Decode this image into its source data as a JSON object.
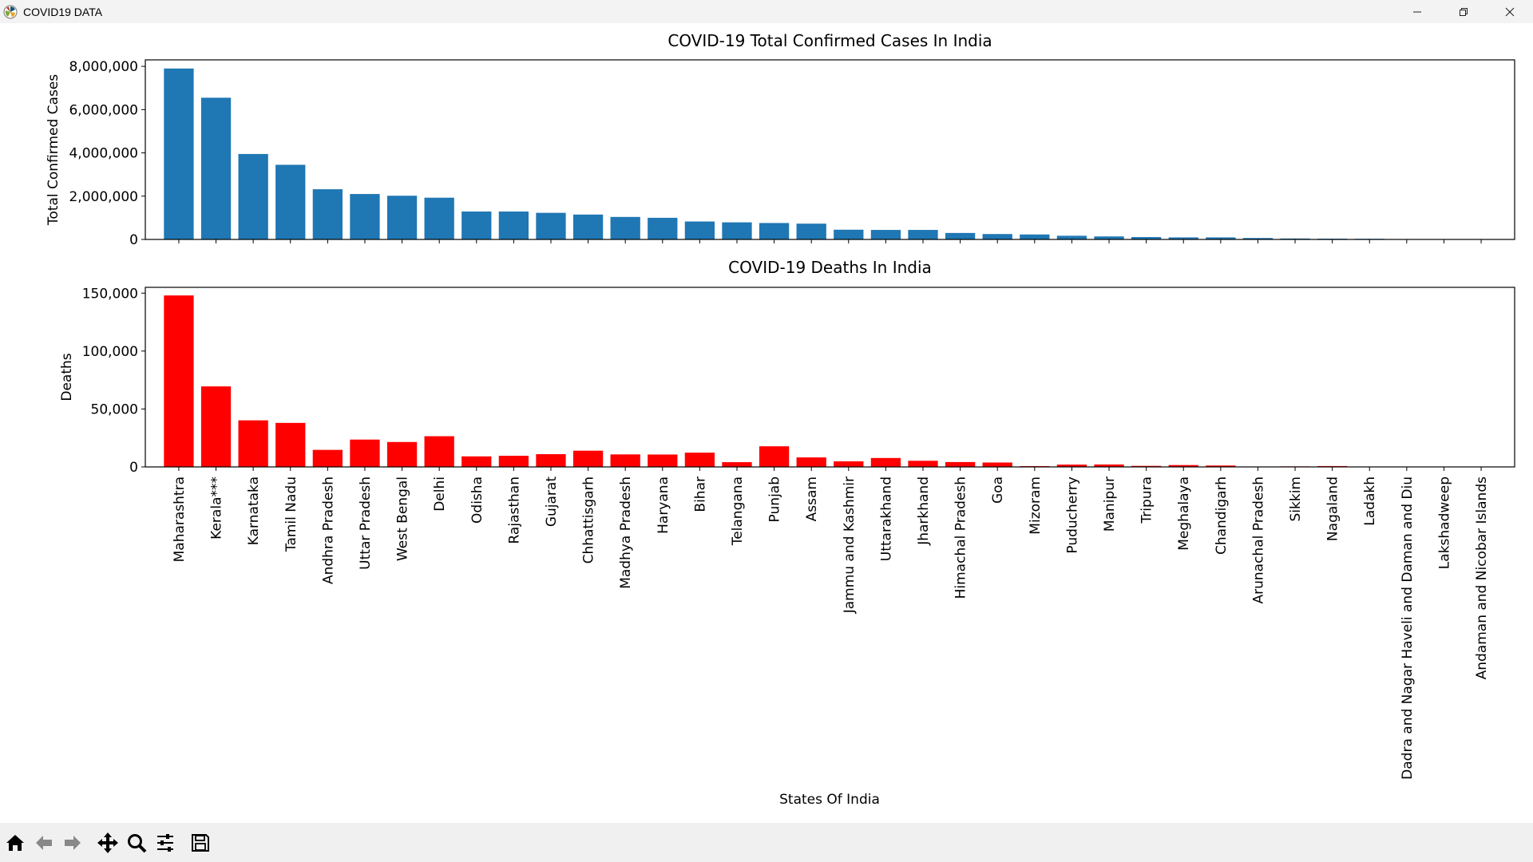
{
  "window": {
    "title": "COVID19 DATA",
    "icon": "matplotlib-logo-icon",
    "controls": [
      "minimize-icon",
      "restore-icon",
      "close-icon"
    ]
  },
  "toolbar": {
    "buttons": [
      "home-icon",
      "back-arrow-icon",
      "forward-arrow-icon",
      "pan-icon",
      "zoom-icon",
      "configure-subplots-icon",
      "save-icon"
    ]
  },
  "figure": {
    "xlabel": "States Of India"
  },
  "chart_data": [
    {
      "type": "bar",
      "title": "COVID-19 Total Confirmed Cases In India",
      "xlabel": "",
      "ylabel": "Total Confirmed Cases",
      "ylim": [
        0,
        8300000
      ],
      "yticks": [
        0,
        2000000,
        4000000,
        6000000,
        8000000
      ],
      "ytick_labels": [
        "0",
        "2,000,000",
        "4,000,000",
        "6,000,000",
        "8,000,000"
      ],
      "color": "#1f77b4",
      "grid": false,
      "categories": [
        "Maharashtra",
        "Kerala***",
        "Karnataka",
        "Tamil Nadu",
        "Andhra Pradesh",
        "Uttar Pradesh",
        "West Bengal",
        "Delhi",
        "Odisha",
        "Rajasthan",
        "Gujarat",
        "Chhattisgarh",
        "Madhya Pradesh",
        "Haryana",
        "Bihar",
        "Telangana",
        "Punjab",
        "Assam",
        "Jammu and Kashmir",
        "Uttarakhand",
        "Jharkhand",
        "Himachal Pradesh",
        "Goa",
        "Mizoram",
        "Puducherry",
        "Manipur",
        "Tripura",
        "Meghalaya",
        "Chandigarh",
        "Arunachal Pradesh",
        "Sikkim",
        "Nagaland",
        "Ladakh",
        "Dadra and Nagar Haveli and Daman and Diu",
        "Lakshadweep",
        "Andaman and Nicobar Islands"
      ],
      "values": [
        7900000,
        6550000,
        3950000,
        3450000,
        2320000,
        2100000,
        2020000,
        1930000,
        1290000,
        1290000,
        1230000,
        1150000,
        1040000,
        1000000,
        830000,
        790000,
        760000,
        730000,
        450000,
        440000,
        440000,
        300000,
        250000,
        230000,
        170000,
        140000,
        110000,
        95000,
        95000,
        67000,
        44000,
        36000,
        30000,
        11000,
        11000,
        10000
      ]
    },
    {
      "type": "bar",
      "title": "COVID-19 Deaths In India",
      "xlabel": "States Of India",
      "ylabel": "Deaths",
      "ylim": [
        0,
        155000
      ],
      "yticks": [
        0,
        50000,
        100000,
        150000
      ],
      "ytick_labels": [
        "0",
        "50,000",
        "100,000",
        "150,000"
      ],
      "color": "#ff0000",
      "grid": false,
      "categories": [
        "Maharashtra",
        "Kerala***",
        "Karnataka",
        "Tamil Nadu",
        "Andhra Pradesh",
        "Uttar Pradesh",
        "West Bengal",
        "Delhi",
        "Odisha",
        "Rajasthan",
        "Gujarat",
        "Chhattisgarh",
        "Madhya Pradesh",
        "Haryana",
        "Bihar",
        "Telangana",
        "Punjab",
        "Assam",
        "Jammu and Kashmir",
        "Uttarakhand",
        "Jharkhand",
        "Himachal Pradesh",
        "Goa",
        "Mizoram",
        "Puducherry",
        "Manipur",
        "Tripura",
        "Meghalaya",
        "Chandigarh",
        "Arunachal Pradesh",
        "Sikkim",
        "Nagaland",
        "Ladakh",
        "Dadra and Nagar Haveli and Daman and Diu",
        "Lakshadweep",
        "Andaman and Nicobar Islands"
      ],
      "values": [
        148000,
        69500,
        40200,
        38000,
        14700,
        23600,
        21500,
        26500,
        9100,
        9600,
        11000,
        14000,
        10800,
        10700,
        12300,
        4100,
        17800,
        8200,
        4800,
        7700,
        5300,
        4200,
        3800,
        700,
        2000,
        2100,
        900,
        1600,
        1200,
        300,
        450,
        750,
        230,
        4,
        52,
        130
      ]
    }
  ]
}
